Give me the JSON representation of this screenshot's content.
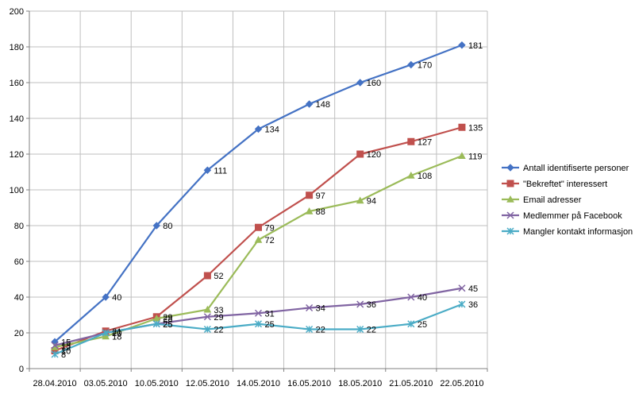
{
  "chart_data": {
    "type": "line",
    "title": "",
    "xlabel": "",
    "ylabel": "",
    "ylim": [
      0,
      200
    ],
    "ytick_step": 20,
    "grid": true,
    "legend_position": "right",
    "categories": [
      "28.04.2010",
      "03.05.2010",
      "10.05.2010",
      "12.05.2010",
      "14.05.2010",
      "16.05.2010",
      "18.05.2010",
      "21.05.2010",
      "22.05.2010"
    ],
    "series": [
      {
        "name": "Antall identifiserte personer",
        "color": "#4472C4",
        "marker": "diamond",
        "values": [
          15,
          40,
          80,
          111,
          134,
          148,
          160,
          170,
          181
        ]
      },
      {
        "name": "\"Bekreftet\" interessert",
        "color": "#C0504D",
        "marker": "square",
        "values": [
          10,
          21,
          29,
          52,
          79,
          97,
          120,
          127,
          135
        ]
      },
      {
        "name": "Email adresser",
        "color": "#9BBB59",
        "marker": "triangle",
        "values": [
          12,
          18,
          28,
          33,
          72,
          88,
          94,
          108,
          119
        ]
      },
      {
        "name": "Medlemmer på Facebook",
        "color": "#8064A2",
        "marker": "x",
        "values": [
          13,
          20,
          25,
          29,
          31,
          34,
          36,
          40,
          45
        ]
      },
      {
        "name": "Mangler kontakt informasjon",
        "color": "#4BACC6",
        "marker": "star",
        "values": [
          8,
          20,
          25,
          22,
          25,
          22,
          22,
          25,
          36
        ]
      }
    ]
  }
}
